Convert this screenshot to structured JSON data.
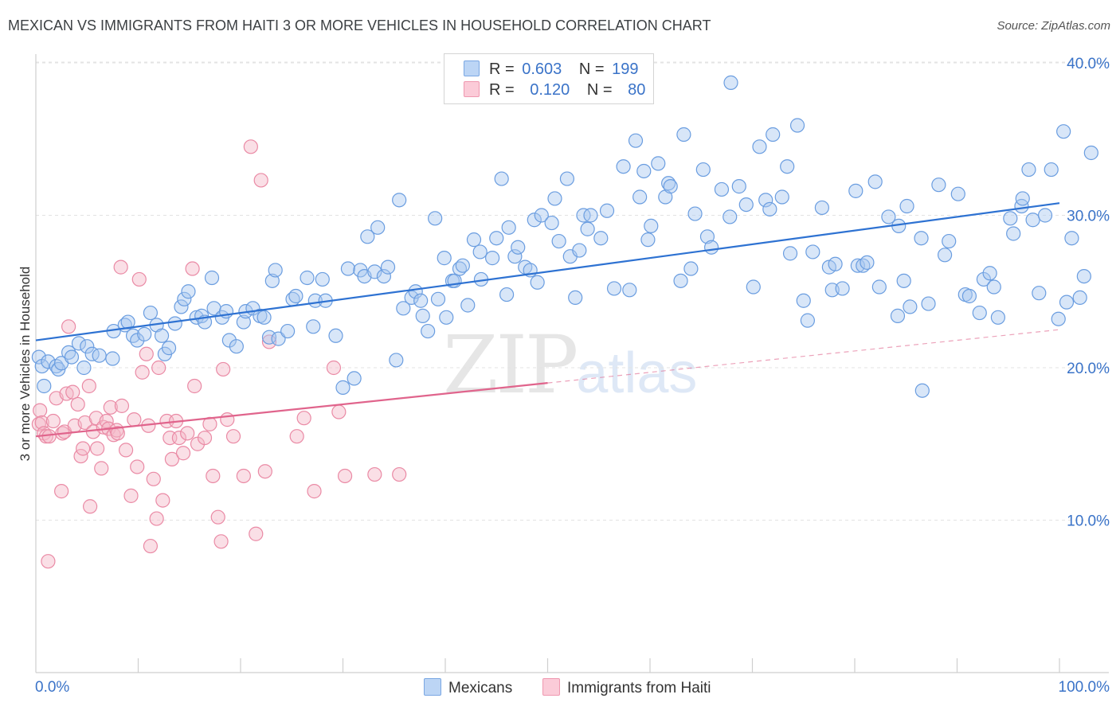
{
  "title": "MEXICAN VS IMMIGRANTS FROM HAITI 3 OR MORE VEHICLES IN HOUSEHOLD CORRELATION CHART",
  "source": "Source: ZipAtlas.com",
  "watermark": {
    "zip": "ZIP",
    "atlas": "atlas"
  },
  "stats": [
    {
      "r_label": "R =",
      "r_value": "0.603",
      "n_label": "N =",
      "n_value": "199",
      "color": "#a8c8f0"
    },
    {
      "r_label": "R =",
      "r_value": "0.120",
      "n_label": "N =",
      "n_value": "80",
      "color": "#f5b8c8"
    }
  ],
  "legend": [
    "Mexicans",
    "Immigrants from Haiti"
  ],
  "colors": {
    "mexicans_fill": "#a8c8f0",
    "mexicans_stroke": "#6a9de0",
    "mexicans_line": "#2e72d2",
    "haiti_fill": "#f5b8c8",
    "haiti_stroke": "#ea8aa5",
    "haiti_line": "#e0648c",
    "axis_tick_text": "#3a73c8"
  },
  "chart_data": {
    "type": "scatter",
    "xlabel": "",
    "ylabel": "3 or more Vehicles in Household",
    "xlim": [
      0,
      100
    ],
    "ylim": [
      0,
      42
    ],
    "x_tick_labels": [
      "0.0%",
      "100.0%"
    ],
    "y_ticks": [
      10,
      20,
      30,
      40
    ],
    "y_tick_labels": [
      "10.0%",
      "20.0%",
      "30.0%",
      "40.0%"
    ],
    "grid": true,
    "legend_position": "bottom",
    "series": [
      {
        "name": "Mexicans",
        "trend": {
          "x": [
            0,
            100
          ],
          "y": [
            21.8,
            30.8
          ]
        },
        "points": [
          [
            0.3,
            20.7
          ],
          [
            0.6,
            20.1
          ],
          [
            0.8,
            18.8
          ],
          [
            1.2,
            20.4
          ],
          [
            2.0,
            20.1
          ],
          [
            2.2,
            19.9
          ],
          [
            2.5,
            20.3
          ],
          [
            3.2,
            21.0
          ],
          [
            3.5,
            20.7
          ],
          [
            4.2,
            21.6
          ],
          [
            4.7,
            20.0
          ],
          [
            5.0,
            21.4
          ],
          [
            5.5,
            20.9
          ],
          [
            6.2,
            20.8
          ],
          [
            7.5,
            20.6
          ],
          [
            7.6,
            22.4
          ],
          [
            8.7,
            22.8
          ],
          [
            9.0,
            23.0
          ],
          [
            9.5,
            22.1
          ],
          [
            9.9,
            21.8
          ],
          [
            10.6,
            22.2
          ],
          [
            11.2,
            23.6
          ],
          [
            11.8,
            22.8
          ],
          [
            12.3,
            22.1
          ],
          [
            12.6,
            20.9
          ],
          [
            13.0,
            21.3
          ],
          [
            13.6,
            22.9
          ],
          [
            14.2,
            24.0
          ],
          [
            14.5,
            24.5
          ],
          [
            14.9,
            25.0
          ],
          [
            15.7,
            23.3
          ],
          [
            16.2,
            23.4
          ],
          [
            16.5,
            23.0
          ],
          [
            17.2,
            25.9
          ],
          [
            17.4,
            23.9
          ],
          [
            18.2,
            23.3
          ],
          [
            18.6,
            23.7
          ],
          [
            18.9,
            21.8
          ],
          [
            19.6,
            21.4
          ],
          [
            20.3,
            23.0
          ],
          [
            20.5,
            23.7
          ],
          [
            21.2,
            23.9
          ],
          [
            21.9,
            23.4
          ],
          [
            22.3,
            23.3
          ],
          [
            22.8,
            22.0
          ],
          [
            23.1,
            25.7
          ],
          [
            23.4,
            26.4
          ],
          [
            23.7,
            21.9
          ],
          [
            24.6,
            22.4
          ],
          [
            25.1,
            24.5
          ],
          [
            25.4,
            24.7
          ],
          [
            26.5,
            25.9
          ],
          [
            27.1,
            22.7
          ],
          [
            27.3,
            24.4
          ],
          [
            28.0,
            25.8
          ],
          [
            28.3,
            24.4
          ],
          [
            29.3,
            22.1
          ],
          [
            30.0,
            18.7
          ],
          [
            30.5,
            26.5
          ],
          [
            31.1,
            19.3
          ],
          [
            31.7,
            26.4
          ],
          [
            32.1,
            26.0
          ],
          [
            32.4,
            28.6
          ],
          [
            33.1,
            26.3
          ],
          [
            33.4,
            29.2
          ],
          [
            34.0,
            26.0
          ],
          [
            34.4,
            26.6
          ],
          [
            35.2,
            20.5
          ],
          [
            35.5,
            31.0
          ],
          [
            35.9,
            23.9
          ],
          [
            36.7,
            24.6
          ],
          [
            37.1,
            25.0
          ],
          [
            37.6,
            24.4
          ],
          [
            37.8,
            23.4
          ],
          [
            38.3,
            22.4
          ],
          [
            39.0,
            29.8
          ],
          [
            39.3,
            24.5
          ],
          [
            39.9,
            27.2
          ],
          [
            40.1,
            23.3
          ],
          [
            40.7,
            25.7
          ],
          [
            40.9,
            25.7
          ],
          [
            41.4,
            26.5
          ],
          [
            41.7,
            26.7
          ],
          [
            42.2,
            24.1
          ],
          [
            42.8,
            28.4
          ],
          [
            43.4,
            27.6
          ],
          [
            43.5,
            25.8
          ],
          [
            44.6,
            27.2
          ],
          [
            45.0,
            28.5
          ],
          [
            45.5,
            32.4
          ],
          [
            46.0,
            24.8
          ],
          [
            46.2,
            29.2
          ],
          [
            46.8,
            27.3
          ],
          [
            47.1,
            27.9
          ],
          [
            47.8,
            26.6
          ],
          [
            48.3,
            26.4
          ],
          [
            48.7,
            29.7
          ],
          [
            49.0,
            25.6
          ],
          [
            49.4,
            30.0
          ],
          [
            50.4,
            29.5
          ],
          [
            50.7,
            31.1
          ],
          [
            51.1,
            28.3
          ],
          [
            51.9,
            32.4
          ],
          [
            52.2,
            27.3
          ],
          [
            52.7,
            24.6
          ],
          [
            53.1,
            27.7
          ],
          [
            53.5,
            30.0
          ],
          [
            53.9,
            29.1
          ],
          [
            54.2,
            30.0
          ],
          [
            55.2,
            28.5
          ],
          [
            55.8,
            30.3
          ],
          [
            56.5,
            25.2
          ],
          [
            57.4,
            33.2
          ],
          [
            58.0,
            25.1
          ],
          [
            58.6,
            34.9
          ],
          [
            59.0,
            31.2
          ],
          [
            59.4,
            32.9
          ],
          [
            59.8,
            28.4
          ],
          [
            60.1,
            29.3
          ],
          [
            60.8,
            33.4
          ],
          [
            61.5,
            31.2
          ],
          [
            61.8,
            32.1
          ],
          [
            62.0,
            31.9
          ],
          [
            63.0,
            25.7
          ],
          [
            63.3,
            35.3
          ],
          [
            64.0,
            26.5
          ],
          [
            64.4,
            30.1
          ],
          [
            65.2,
            33.0
          ],
          [
            65.6,
            28.6
          ],
          [
            66.0,
            27.9
          ],
          [
            67.0,
            31.7
          ],
          [
            67.8,
            29.9
          ],
          [
            67.9,
            38.7
          ],
          [
            68.7,
            31.9
          ],
          [
            69.4,
            30.7
          ],
          [
            70.1,
            25.3
          ],
          [
            70.7,
            34.5
          ],
          [
            71.3,
            31.0
          ],
          [
            71.7,
            30.4
          ],
          [
            72.0,
            35.3
          ],
          [
            72.9,
            31.2
          ],
          [
            73.4,
            33.2
          ],
          [
            73.7,
            27.5
          ],
          [
            74.4,
            35.9
          ],
          [
            75.0,
            24.4
          ],
          [
            75.4,
            23.1
          ],
          [
            75.9,
            27.6
          ],
          [
            76.8,
            30.5
          ],
          [
            77.5,
            26.6
          ],
          [
            77.8,
            25.1
          ],
          [
            78.1,
            26.8
          ],
          [
            78.8,
            25.2
          ],
          [
            80.1,
            31.6
          ],
          [
            80.3,
            26.7
          ],
          [
            80.8,
            26.7
          ],
          [
            81.2,
            26.9
          ],
          [
            82.0,
            32.2
          ],
          [
            82.4,
            25.3
          ],
          [
            83.3,
            29.9
          ],
          [
            84.2,
            23.4
          ],
          [
            84.3,
            29.3
          ],
          [
            84.8,
            25.7
          ],
          [
            85.1,
            30.6
          ],
          [
            85.4,
            24.0
          ],
          [
            86.5,
            28.5
          ],
          [
            86.6,
            18.5
          ],
          [
            87.2,
            24.2
          ],
          [
            88.2,
            32.0
          ],
          [
            88.8,
            27.4
          ],
          [
            89.2,
            28.3
          ],
          [
            90.1,
            31.4
          ],
          [
            90.8,
            24.8
          ],
          [
            91.2,
            24.7
          ],
          [
            92.2,
            23.6
          ],
          [
            92.6,
            25.8
          ],
          [
            93.2,
            26.2
          ],
          [
            93.6,
            25.3
          ],
          [
            94.0,
            23.3
          ],
          [
            95.2,
            29.8
          ],
          [
            95.5,
            28.8
          ],
          [
            96.3,
            30.6
          ],
          [
            96.4,
            31.1
          ],
          [
            97.0,
            33.0
          ],
          [
            97.4,
            29.7
          ],
          [
            98.0,
            24.9
          ],
          [
            98.6,
            30.0
          ],
          [
            99.2,
            33.0
          ],
          [
            99.9,
            23.2
          ],
          [
            100.4,
            35.5
          ],
          [
            100.7,
            24.3
          ],
          [
            101.2,
            28.5
          ],
          [
            102.0,
            24.6
          ],
          [
            102.4,
            26.0
          ],
          [
            103.1,
            34.1
          ]
        ]
      },
      {
        "name": "Immigrants from Haiti",
        "trend_solid": {
          "x": [
            0,
            50
          ],
          "y": [
            15.5,
            19.0
          ]
        },
        "trend_dashed": {
          "x": [
            50,
            100
          ],
          "y": [
            19.0,
            22.5
          ]
        },
        "points": [
          [
            0.3,
            16.3
          ],
          [
            0.4,
            17.2
          ],
          [
            0.6,
            16.4
          ],
          [
            0.8,
            15.7
          ],
          [
            1.0,
            15.5
          ],
          [
            1.2,
            7.3
          ],
          [
            1.3,
            15.5
          ],
          [
            1.7,
            16.5
          ],
          [
            2.0,
            18.0
          ],
          [
            2.5,
            11.9
          ],
          [
            2.6,
            15.7
          ],
          [
            2.8,
            15.8
          ],
          [
            3.0,
            18.3
          ],
          [
            3.2,
            22.7
          ],
          [
            3.6,
            18.4
          ],
          [
            3.8,
            16.2
          ],
          [
            4.1,
            17.6
          ],
          [
            4.4,
            14.2
          ],
          [
            4.6,
            14.7
          ],
          [
            4.8,
            16.4
          ],
          [
            5.2,
            18.8
          ],
          [
            5.3,
            10.9
          ],
          [
            5.6,
            15.8
          ],
          [
            5.9,
            16.7
          ],
          [
            6.0,
            14.7
          ],
          [
            6.4,
            13.4
          ],
          [
            6.6,
            16.1
          ],
          [
            6.9,
            16.5
          ],
          [
            7.1,
            16.0
          ],
          [
            7.3,
            17.4
          ],
          [
            7.6,
            15.6
          ],
          [
            7.9,
            15.9
          ],
          [
            8.0,
            15.7
          ],
          [
            8.3,
            26.6
          ],
          [
            8.4,
            17.5
          ],
          [
            8.8,
            14.6
          ],
          [
            9.3,
            11.6
          ],
          [
            9.6,
            16.6
          ],
          [
            9.9,
            13.5
          ],
          [
            10.1,
            25.8
          ],
          [
            10.4,
            19.7
          ],
          [
            10.8,
            20.9
          ],
          [
            11.0,
            16.2
          ],
          [
            11.2,
            8.3
          ],
          [
            11.5,
            12.7
          ],
          [
            11.8,
            10.1
          ],
          [
            12.0,
            20.0
          ],
          [
            12.4,
            11.3
          ],
          [
            12.8,
            16.5
          ],
          [
            13.1,
            15.4
          ],
          [
            13.3,
            14.0
          ],
          [
            13.7,
            16.5
          ],
          [
            14.0,
            15.4
          ],
          [
            14.4,
            14.4
          ],
          [
            14.8,
            15.7
          ],
          [
            15.3,
            26.5
          ],
          [
            15.5,
            18.8
          ],
          [
            15.8,
            15.0
          ],
          [
            16.5,
            15.4
          ],
          [
            17.0,
            16.3
          ],
          [
            17.3,
            12.9
          ],
          [
            17.8,
            10.2
          ],
          [
            18.1,
            8.6
          ],
          [
            18.3,
            19.9
          ],
          [
            18.7,
            16.6
          ],
          [
            19.3,
            15.5
          ],
          [
            20.3,
            12.9
          ],
          [
            21.0,
            34.5
          ],
          [
            21.5,
            9.1
          ],
          [
            22.0,
            32.3
          ],
          [
            22.4,
            13.2
          ],
          [
            22.8,
            21.7
          ],
          [
            25.5,
            15.5
          ],
          [
            26.2,
            16.7
          ],
          [
            27.2,
            11.9
          ],
          [
            29.1,
            20.0
          ],
          [
            29.6,
            17.1
          ],
          [
            30.2,
            12.9
          ],
          [
            33.1,
            13.0
          ],
          [
            35.5,
            13.0
          ]
        ]
      }
    ]
  }
}
